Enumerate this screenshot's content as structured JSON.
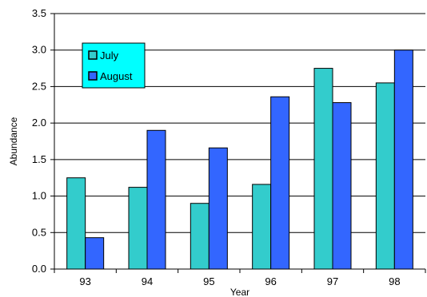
{
  "chart_data": {
    "type": "bar",
    "title": "",
    "xlabel": "Year",
    "ylabel": "Abundance",
    "categories": [
      "93",
      "94",
      "95",
      "96",
      "97",
      "98"
    ],
    "series": [
      {
        "name": "July",
        "values": [
          1.25,
          1.12,
          0.9,
          1.16,
          2.75,
          2.55
        ],
        "color": "#33cccc"
      },
      {
        "name": "August",
        "values": [
          0.43,
          1.9,
          1.66,
          2.36,
          2.28,
          3.0
        ],
        "color": "#3366ff"
      }
    ],
    "ylim": [
      0,
      3.5
    ],
    "yticks": [
      "0.0",
      "0.5",
      "1.0",
      "1.5",
      "2.0",
      "2.5",
      "3.0",
      "3.5"
    ],
    "grid": true,
    "legend": {
      "position": "top-left",
      "background": "#00ffff"
    }
  }
}
